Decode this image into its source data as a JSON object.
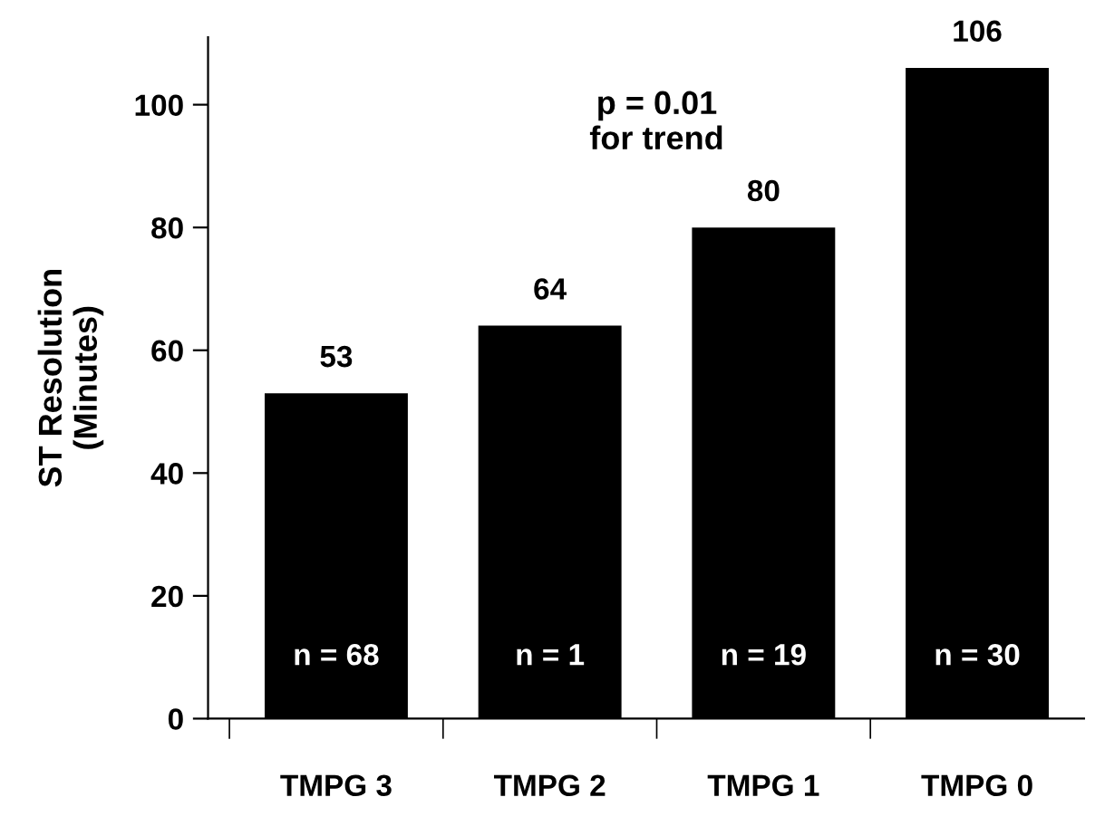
{
  "chart_data": {
    "type": "bar",
    "ylabel": "ST Resolution\n(Minutes)",
    "categories": [
      "TMPG 3",
      "TMPG 2",
      "TMPG 1",
      "TMPG 0"
    ],
    "values": [
      53,
      64,
      80,
      106
    ],
    "color": "#000000",
    "data_labels": true,
    "ylim": [
      0,
      111
    ],
    "yticks": [
      0,
      20,
      40,
      60,
      80,
      100
    ],
    "grid": false,
    "legend": false,
    "annotations": [
      "p = 0.01\nfor trend",
      "n = 68",
      "n = 1",
      "n = 19",
      "n = 30"
    ]
  }
}
